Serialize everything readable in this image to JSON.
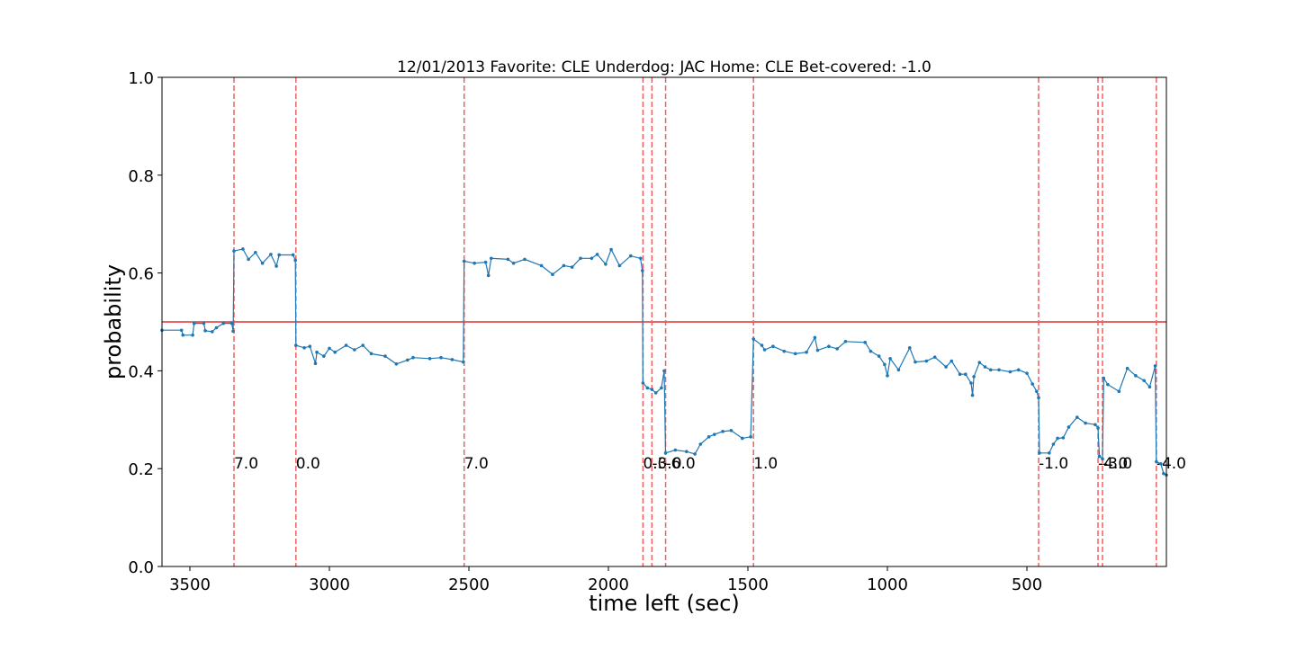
{
  "chart_data": {
    "type": "line",
    "title": "12/01/2013 Favorite: CLE Underdog: JAC Home: CLE Bet-covered: -1.0",
    "x_label": "time left (sec)",
    "y_label": "probability",
    "xlim": [
      3600,
      0
    ],
    "ylim": [
      0,
      1
    ],
    "xticks": [
      3500,
      3000,
      2500,
      2000,
      1500,
      1000,
      500
    ],
    "yticks": [
      {
        "value": 0,
        "label": "0.0"
      },
      0.2,
      0.4,
      0.6,
      0.8,
      {
        "value": 1,
        "label": "1.0"
      }
    ],
    "hline": {
      "value": 0.5,
      "color": "#e03030"
    },
    "vlines": {
      "color": "#f06060",
      "x": [
        3342,
        3120,
        2517,
        1876,
        1844,
        1795,
        1480,
        458,
        245,
        229,
        36
      ],
      "labels": [
        "7.0",
        "0.0",
        "7.0",
        "0.0",
        "-3.0",
        "-6.0",
        "1.0",
        "-1.0",
        "-4.0",
        "-3.0",
        "-4.0"
      ]
    },
    "series": [
      {
        "color": "#1f77b4",
        "x": [
          3600,
          3530,
          3525,
          3490,
          3485,
          3450,
          3445,
          3420,
          3405,
          3380,
          3350,
          3345,
          3342,
          3310,
          3290,
          3265,
          3240,
          3210,
          3190,
          3180,
          3130,
          3122,
          3120,
          3090,
          3070,
          3050,
          3045,
          3020,
          3000,
          2980,
          2940,
          2910,
          2880,
          2850,
          2800,
          2760,
          2720,
          2700,
          2640,
          2600,
          2560,
          2520,
          2517,
          2480,
          2440,
          2430,
          2420,
          2360,
          2340,
          2300,
          2240,
          2200,
          2160,
          2130,
          2100,
          2060,
          2040,
          2010,
          1990,
          1960,
          1920,
          1885,
          1878,
          1876,
          1860,
          1844,
          1830,
          1810,
          1800,
          1795,
          1760,
          1720,
          1690,
          1670,
          1640,
          1620,
          1590,
          1560,
          1520,
          1490,
          1480,
          1450,
          1440,
          1410,
          1370,
          1330,
          1290,
          1260,
          1250,
          1210,
          1180,
          1150,
          1080,
          1060,
          1030,
          1010,
          1000,
          990,
          960,
          920,
          900,
          860,
          830,
          790,
          770,
          740,
          720,
          700,
          695,
          690,
          670,
          650,
          630,
          600,
          560,
          530,
          500,
          480,
          465,
          458,
          455,
          420,
          405,
          390,
          370,
          350,
          320,
          290,
          255,
          245,
          240,
          229,
          225,
          210,
          170,
          140,
          110,
          80,
          60,
          40,
          36,
          20,
          10,
          0
        ],
        "values": [
          0.483,
          0.483,
          0.473,
          0.473,
          0.497,
          0.497,
          0.482,
          0.48,
          0.488,
          0.497,
          0.497,
          0.481,
          0.645,
          0.649,
          0.628,
          0.642,
          0.62,
          0.638,
          0.614,
          0.637,
          0.637,
          0.626,
          0.452,
          0.447,
          0.45,
          0.415,
          0.438,
          0.43,
          0.446,
          0.438,
          0.452,
          0.443,
          0.452,
          0.435,
          0.43,
          0.414,
          0.422,
          0.427,
          0.425,
          0.427,
          0.423,
          0.418,
          0.624,
          0.62,
          0.622,
          0.595,
          0.63,
          0.628,
          0.62,
          0.628,
          0.615,
          0.597,
          0.615,
          0.612,
          0.63,
          0.63,
          0.638,
          0.618,
          0.648,
          0.615,
          0.635,
          0.63,
          0.605,
          0.375,
          0.365,
          0.362,
          0.355,
          0.365,
          0.4,
          0.232,
          0.238,
          0.235,
          0.23,
          0.25,
          0.265,
          0.27,
          0.276,
          0.278,
          0.262,
          0.265,
          0.465,
          0.452,
          0.443,
          0.45,
          0.44,
          0.435,
          0.438,
          0.468,
          0.442,
          0.45,
          0.445,
          0.46,
          0.458,
          0.44,
          0.43,
          0.413,
          0.39,
          0.425,
          0.402,
          0.447,
          0.418,
          0.42,
          0.428,
          0.408,
          0.42,
          0.393,
          0.393,
          0.375,
          0.35,
          0.388,
          0.417,
          0.408,
          0.402,
          0.402,
          0.398,
          0.402,
          0.395,
          0.373,
          0.358,
          0.345,
          0.232,
          0.232,
          0.25,
          0.262,
          0.263,
          0.285,
          0.305,
          0.293,
          0.29,
          0.283,
          0.225,
          0.22,
          0.385,
          0.372,
          0.358,
          0.405,
          0.39,
          0.38,
          0.367,
          0.41,
          0.214,
          0.21,
          0.19,
          0.187
        ]
      }
    ]
  }
}
